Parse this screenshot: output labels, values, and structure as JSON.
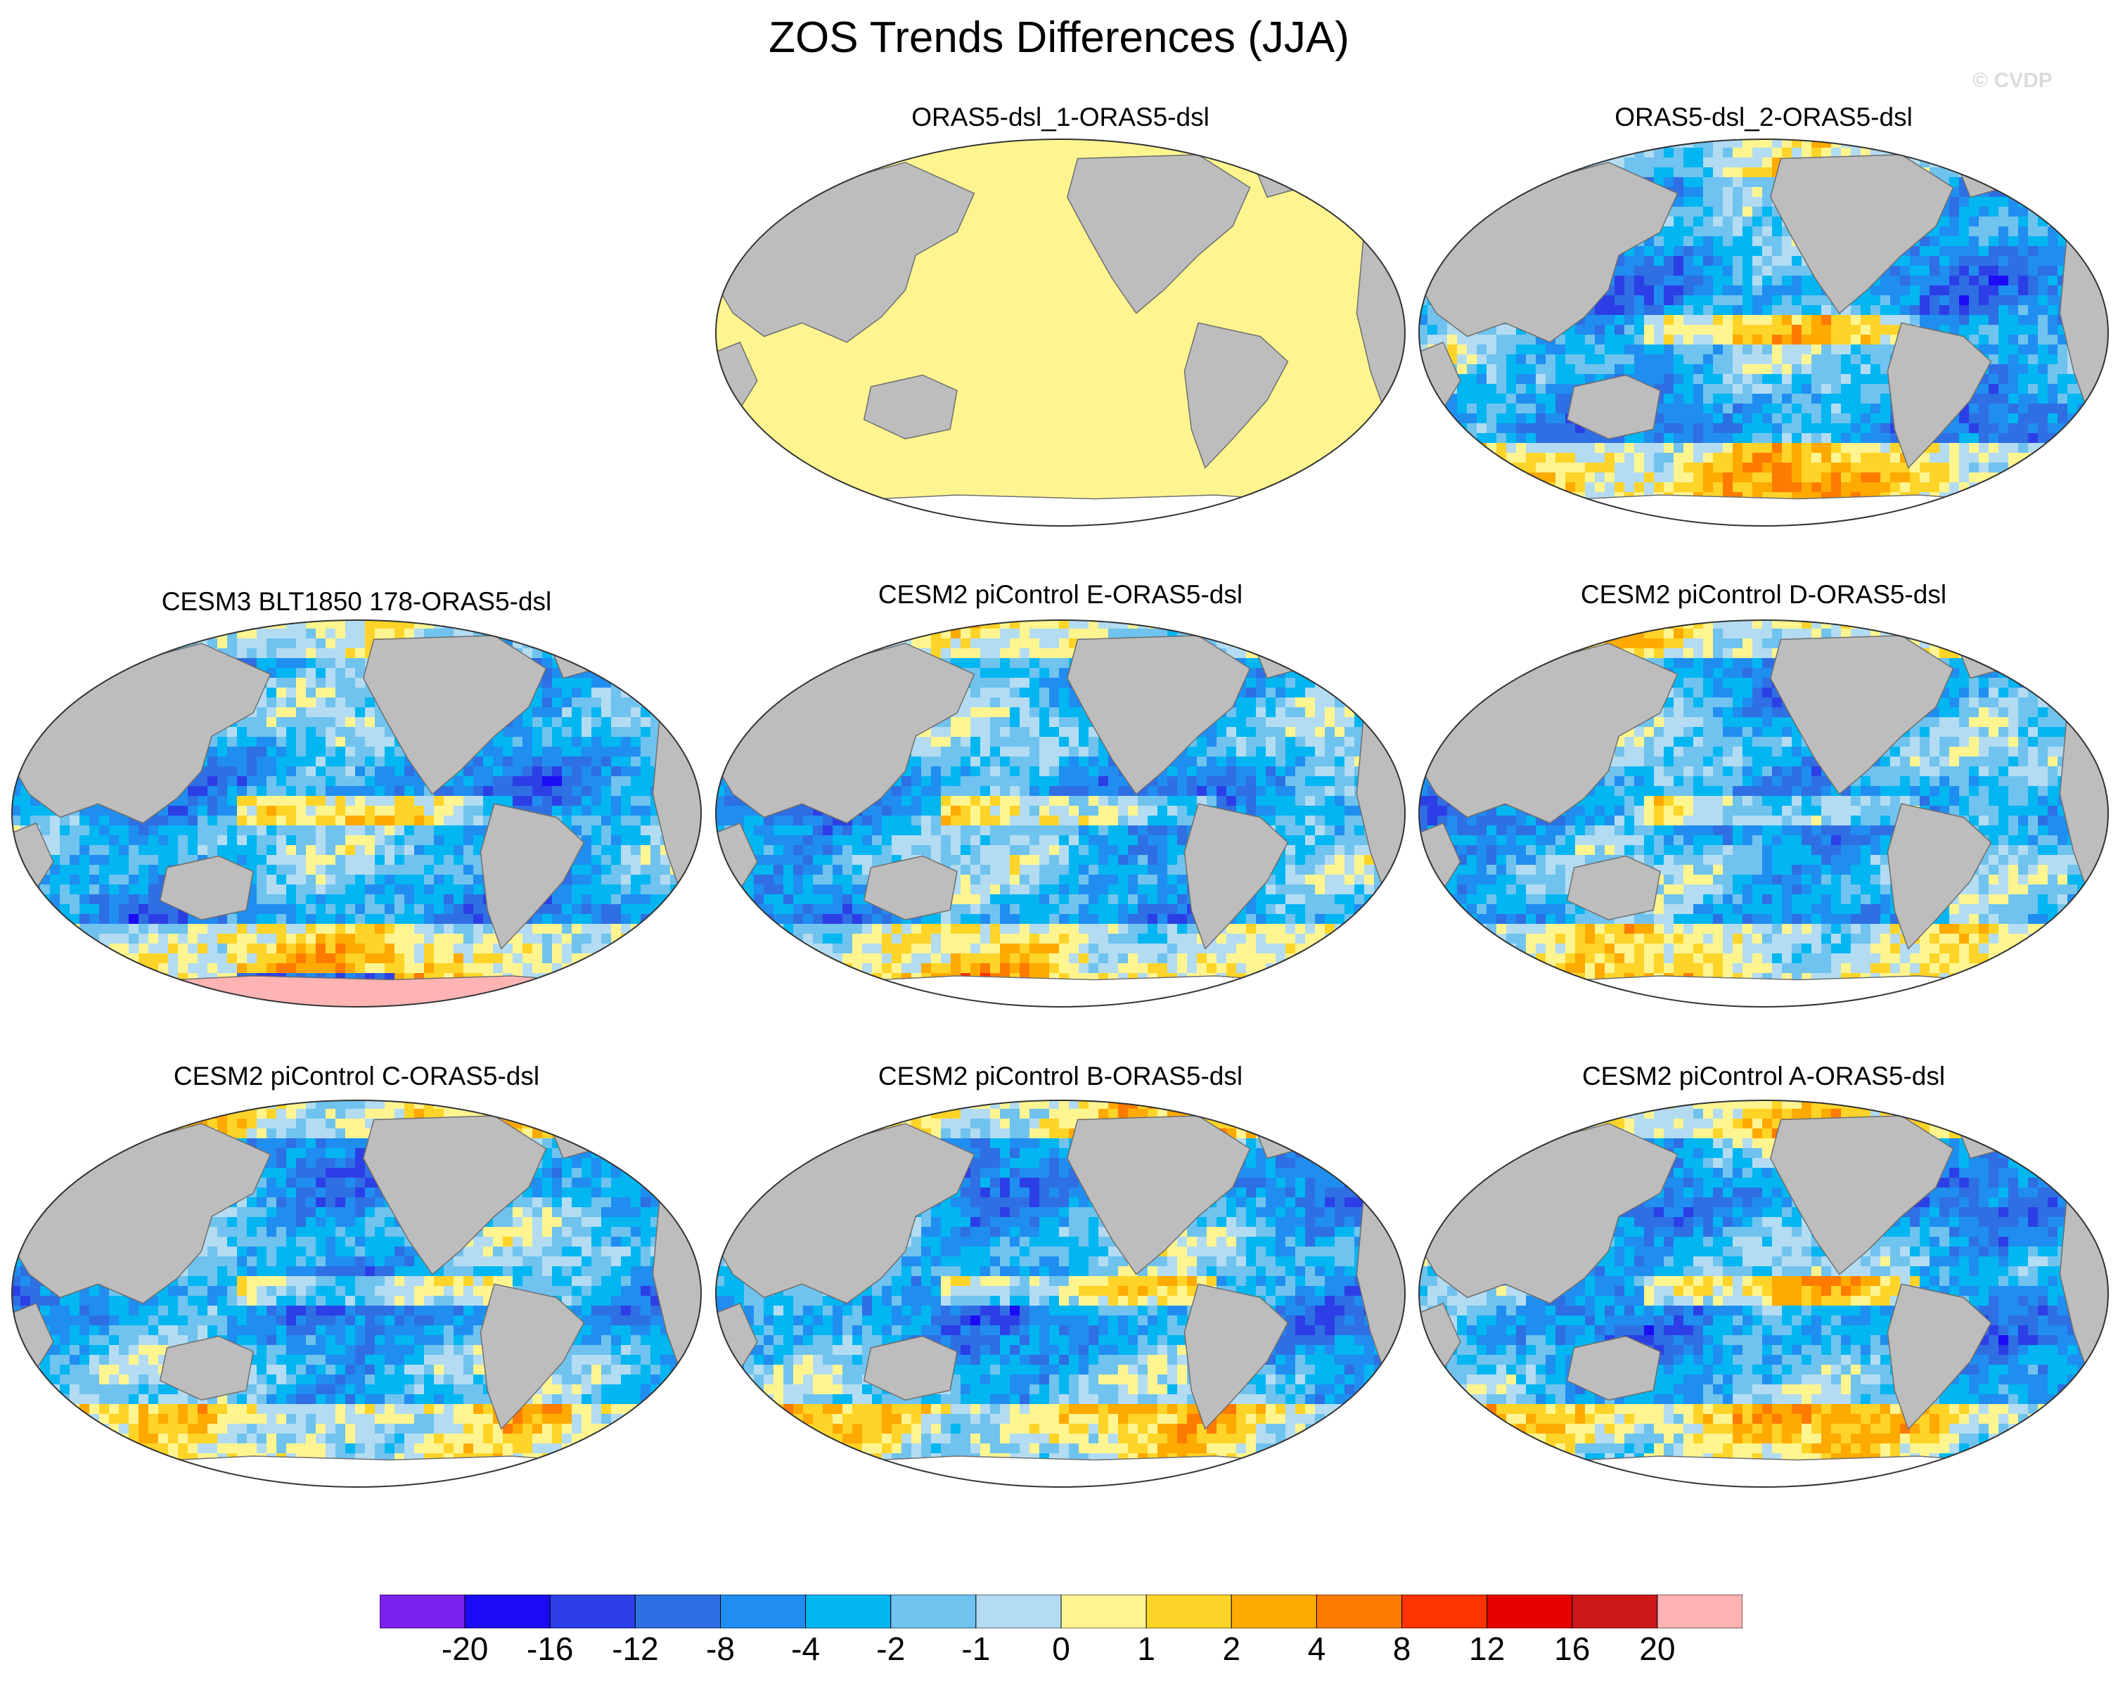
{
  "title": "ZOS Trends Differences (JJA)",
  "watermark": "© CVDP",
  "colors": {
    "land": "#bdbdbd",
    "antarctica": "#ffffff",
    "coast": "#6e6e6e"
  },
  "panels": [
    {
      "title": "ORAS5-dsl_1-ORAS5-dsl",
      "pattern": "uniform-zero"
    },
    {
      "title": "ORAS5-dsl_2-ORAS5-dsl",
      "pattern": "mixed"
    },
    {
      "title": "CESM3 BLT1850 178-ORAS5-dsl",
      "pattern": "mixed"
    },
    {
      "title": "CESM2 piControl E-ORAS5-dsl",
      "pattern": "mixed"
    },
    {
      "title": "CESM2 piControl D-ORAS5-dsl",
      "pattern": "mixed"
    },
    {
      "title": "CESM2 piControl C-ORAS5-dsl",
      "pattern": "mixed"
    },
    {
      "title": "CESM2 piControl B-ORAS5-dsl",
      "pattern": "mixed"
    },
    {
      "title": "CESM2 piControl A-ORAS5-dsl",
      "pattern": "mixed"
    }
  ],
  "colorbar": {
    "colors": [
      "#7b22ee",
      "#1c0cf5",
      "#2c3fe6",
      "#2f6fe4",
      "#1f8ef0",
      "#02b6f2",
      "#6fc3ee",
      "#b3dcf2",
      "#fff590",
      "#fed428",
      "#ffaa00",
      "#ff7b00",
      "#ff3300",
      "#e60000",
      "#cc1a1a",
      "#ffb3b3"
    ],
    "labels": [
      "-20",
      "-16",
      "-12",
      "-8",
      "-4",
      "-2",
      "-1",
      "0",
      "1",
      "2",
      "4",
      "8",
      "12",
      "16",
      "20"
    ]
  }
}
